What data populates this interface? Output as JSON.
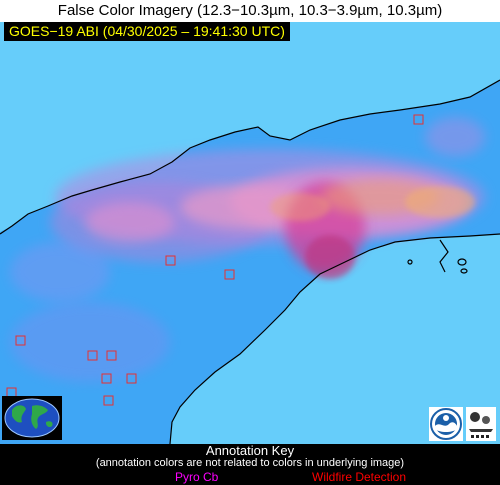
{
  "title": "False Color Imagery (12.3−10.3µm, 10.3−3.9µm, 10.3µm)",
  "timestamp": "GOES−19 ABI (04/30/2025 – 19:41:30 UTC)",
  "key": {
    "title": "Annotation Key",
    "note": "(annotation colors are not related to colors in underlying image)",
    "pyro_label": "Pyro Cb",
    "wildfire_label": "Wildfire Detection"
  },
  "colors": {
    "ocean": "#3fa6f5",
    "land": "#66cdfa",
    "smoke_pink": "#e58fd0",
    "smoke_magenta": "#d6409a",
    "smoke_orange": "#f0a070",
    "coastline": "#000000",
    "wildfire_box": "#e83030",
    "pyro_label": "#ff00ff",
    "wildfire_label": "#ff0000",
    "timestamp_text": "#ffff00"
  },
  "icons": {
    "globe": "earth-globe-logo",
    "noaa": "noaa-logo",
    "cimss": "cimss-logo"
  }
}
